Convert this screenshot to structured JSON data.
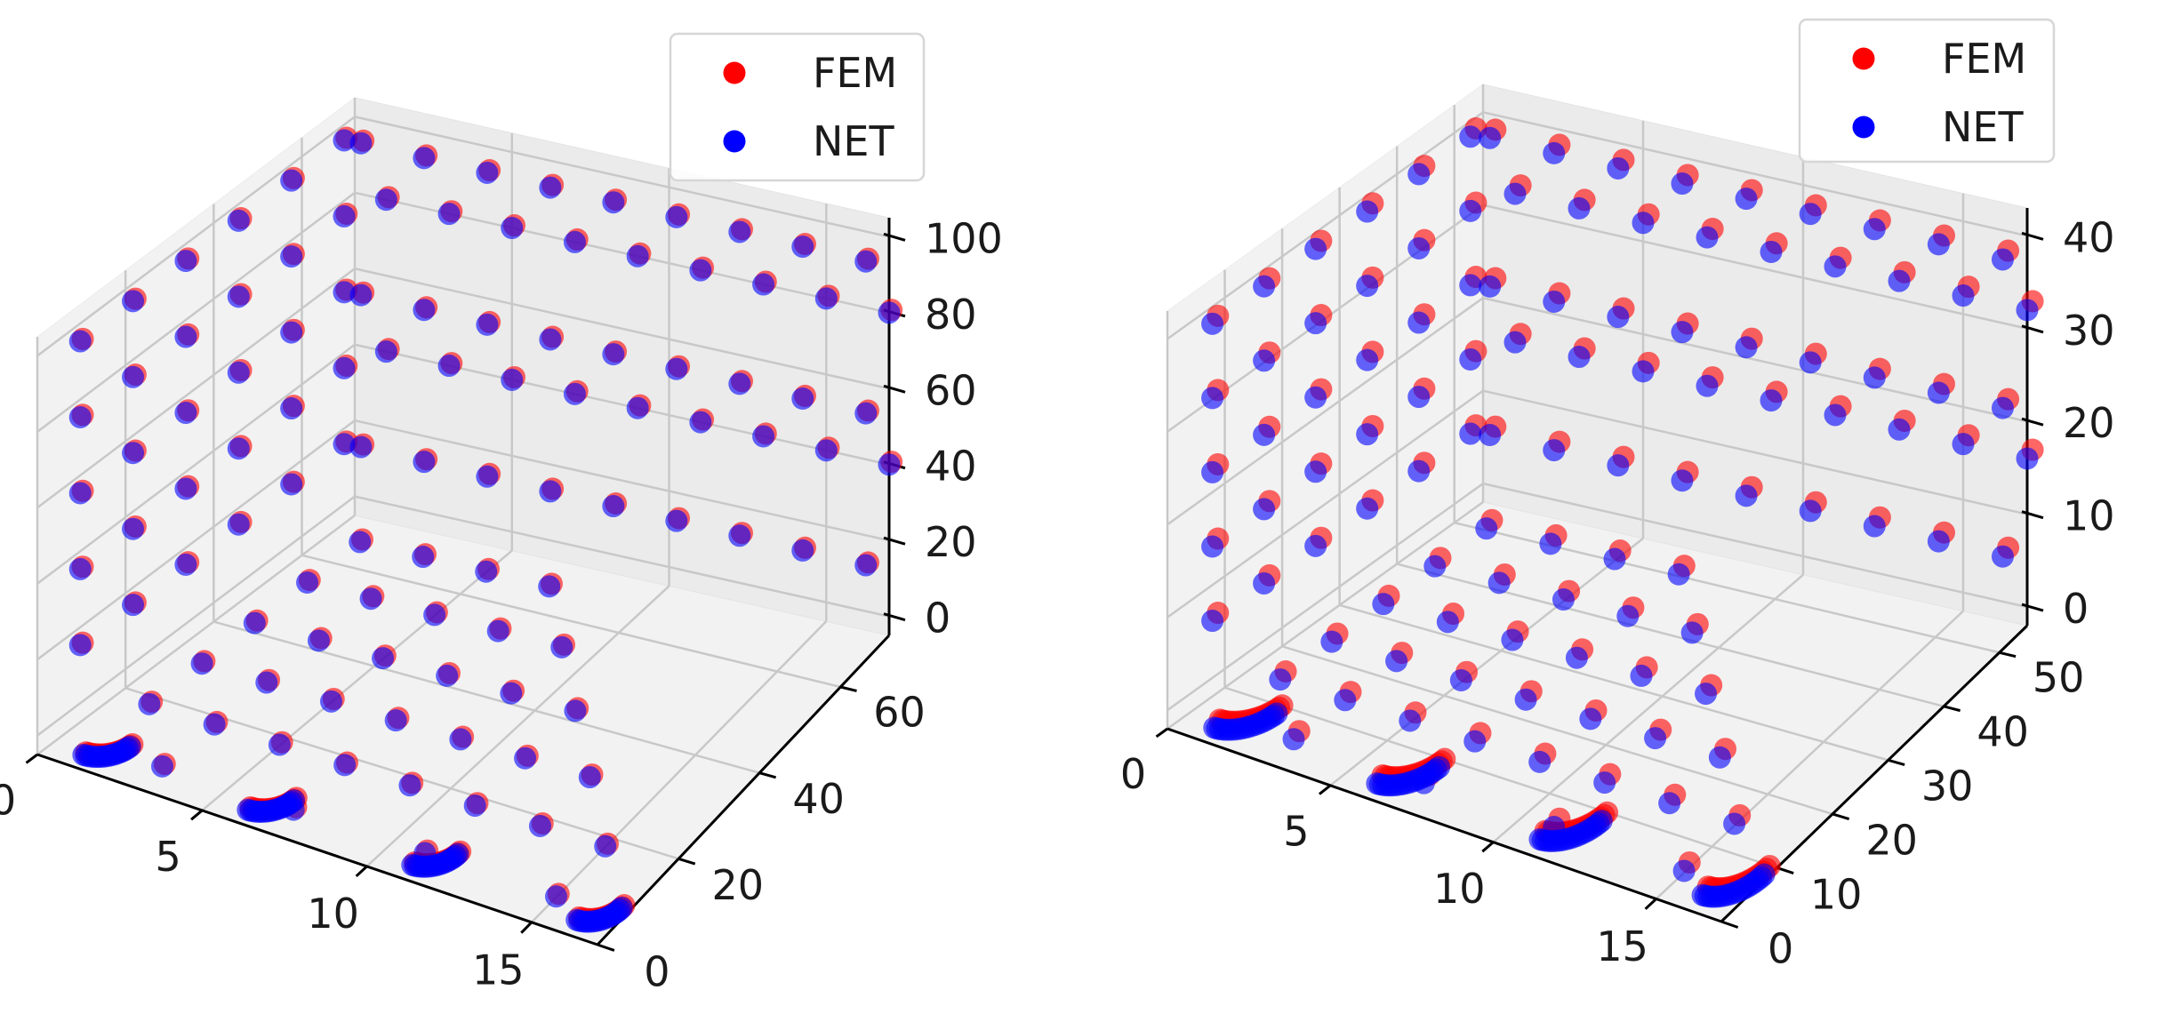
{
  "chart_data": [
    {
      "type": "scatter",
      "projection": "3d",
      "title": "",
      "xlabel": "",
      "ylabel": "",
      "zlabel": "",
      "xlim": [
        0,
        17
      ],
      "ylim": [
        0,
        72
      ],
      "zlim": [
        -5,
        105
      ],
      "xticks": [
        "0",
        "5",
        "10",
        "15"
      ],
      "yticks": [
        "0",
        "20",
        "40",
        "60"
      ],
      "zticks": [
        "0",
        "20",
        "40",
        "60",
        "80",
        "100"
      ],
      "grid": true,
      "legend": {
        "location": "upper right",
        "entries": [
          {
            "label": "FEM",
            "color": "#ff0000"
          },
          {
            "label": "NET",
            "color": "#0000ff"
          }
        ]
      },
      "series": [
        {
          "name": "FEM",
          "color": "#ff0000",
          "alpha": 0.6
        },
        {
          "name": "NET",
          "color": "#0000ff",
          "alpha": 0.6
        }
      ],
      "dataset": {
        "arc_radius": 2.2,
        "arc_points": 16,
        "arc_x_centers": [
          1,
          6,
          11,
          16
        ],
        "arc_z_top": [
          0,
          0,
          0,
          0
        ],
        "grid_x": [
          1,
          3,
          5,
          7,
          9,
          11,
          13,
          15,
          17
        ],
        "grid_y": [
          6,
          18,
          30,
          42,
          54,
          66
        ],
        "grid_z": [
          0,
          20,
          40,
          60,
          80,
          100
        ],
        "fem_offset": [
          0.05,
          0.2,
          0.6
        ]
      }
    },
    {
      "type": "scatter",
      "projection": "3d",
      "title": "",
      "xlabel": "",
      "ylabel": "",
      "zlabel": "",
      "xlim": [
        0,
        17
      ],
      "ylim": [
        0,
        55
      ],
      "zlim": [
        -2,
        43
      ],
      "xticks": [
        "0",
        "5",
        "10",
        "15"
      ],
      "yticks": [
        "0",
        "10",
        "20",
        "30",
        "40",
        "50"
      ],
      "zticks": [
        "0",
        "10",
        "20",
        "30",
        "40"
      ],
      "grid": true,
      "legend": {
        "location": "upper right",
        "entries": [
          {
            "label": "FEM",
            "color": "#ff0000"
          },
          {
            "label": "NET",
            "color": "#0000ff"
          }
        ]
      },
      "series": [
        {
          "name": "FEM",
          "color": "#ff0000",
          "alpha": 0.6
        },
        {
          "name": "NET",
          "color": "#0000ff",
          "alpha": 0.6
        }
      ],
      "dataset": {
        "arc_radius": 2.6,
        "arc_points": 18,
        "arc_x_centers": [
          1,
          6,
          11,
          16
        ],
        "arc_z_top": [
          0,
          0,
          0,
          0
        ],
        "grid_x": [
          1,
          3,
          5,
          7,
          9,
          11,
          13,
          15,
          17
        ],
        "grid_y": [
          5,
          14,
          23,
          32,
          41,
          50
        ],
        "grid_z": [
          0,
          8,
          16,
          24,
          32,
          40
        ],
        "fem_offset": [
          0.1,
          0.4,
          0.8
        ]
      }
    }
  ]
}
